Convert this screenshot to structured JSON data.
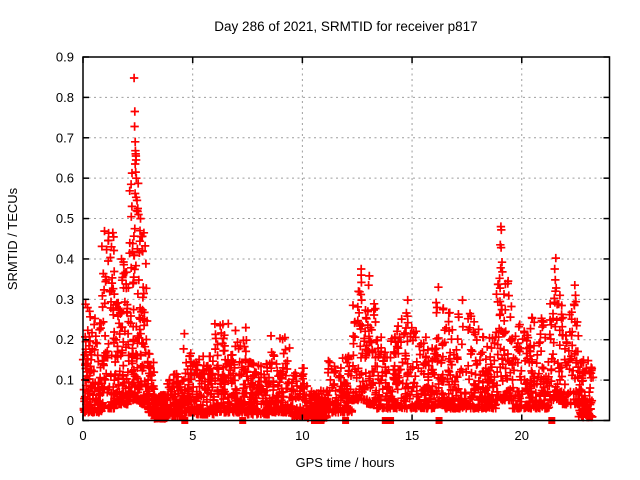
{
  "chart_data": {
    "type": "scatter",
    "title": "Day 286 of 2021, SRMTID for receiver p817",
    "xlabel": "GPS time / hours",
    "ylabel": "SRMTID / TECUs",
    "xlim": [
      0,
      24
    ],
    "ylim": [
      0,
      0.9
    ],
    "xtick_values": [
      0,
      5,
      10,
      15,
      20
    ],
    "xtick_labels": [
      "0",
      "5",
      "10",
      "15",
      "20"
    ],
    "ytick_values": [
      0,
      0.1,
      0.2,
      0.3,
      0.4,
      0.5,
      0.6,
      0.7,
      0.8,
      0.9
    ],
    "ytick_labels": [
      "0",
      "0.1",
      "0.2",
      "0.3",
      "0.4",
      "0.5",
      "0.6",
      "0.7",
      "0.8",
      "0.9"
    ],
    "grid": true,
    "legend": "none",
    "marker": "plus",
    "style": {
      "marker_color": "#ff0000",
      "axis_square_color": "#ff0000",
      "grid_color": "#9e9e9e",
      "frame_color": "#000000",
      "background": "#ffffff"
    },
    "series_name": "SRMTID",
    "axis_square_hours": [
      4.64,
      7.28,
      10.55,
      10.85,
      11.97,
      13.78,
      14.02,
      16.23,
      21.37
    ],
    "outlier_points": [
      [
        1.36,
        0.465
      ],
      [
        1.3,
        0.43
      ],
      [
        2.33,
        0.848
      ],
      [
        2.36,
        0.765
      ],
      [
        2.35,
        0.728
      ],
      [
        2.38,
        0.69
      ],
      [
        2.39,
        0.668
      ],
      [
        2.4,
        0.66
      ],
      [
        2.41,
        0.655
      ],
      [
        2.42,
        0.645
      ],
      [
        2.38,
        0.635
      ],
      [
        2.4,
        0.615
      ],
      [
        2.43,
        0.6
      ],
      [
        2.46,
        0.545
      ],
      [
        2.5,
        0.525
      ],
      [
        2.53,
        0.51
      ],
      [
        2.62,
        0.5
      ],
      [
        2.6,
        0.47
      ],
      [
        2.65,
        0.455
      ],
      [
        2.7,
        0.42
      ],
      [
        4.62,
        0.215
      ],
      [
        12.68,
        0.375
      ],
      [
        12.68,
        0.36
      ],
      [
        12.69,
        0.342
      ],
      [
        12.67,
        0.312
      ],
      [
        12.7,
        0.298
      ],
      [
        13.05,
        0.358
      ],
      [
        13.02,
        0.335
      ],
      [
        14.8,
        0.298
      ],
      [
        16.2,
        0.33
      ],
      [
        17.3,
        0.298
      ],
      [
        19.05,
        0.48
      ],
      [
        19.07,
        0.472
      ],
      [
        19.02,
        0.435
      ],
      [
        19.06,
        0.428
      ],
      [
        19.1,
        0.392
      ],
      [
        19.04,
        0.378
      ],
      [
        19.12,
        0.368
      ],
      [
        18.99,
        0.352
      ],
      [
        21.55,
        0.402
      ],
      [
        21.5,
        0.375
      ],
      [
        21.53,
        0.348
      ],
      [
        21.57,
        0.328
      ],
      [
        22.42,
        0.335
      ],
      [
        22.45,
        0.31
      ],
      [
        22.4,
        0.285
      ]
    ],
    "band_segments": [
      {
        "t0": 0.0,
        "t1": 0.35,
        "n": 60,
        "lo": 0.02,
        "hi": 0.31,
        "p": 2.2
      },
      {
        "t0": 0.35,
        "t1": 0.85,
        "n": 70,
        "lo": 0.02,
        "hi": 0.26,
        "p": 2.2
      },
      {
        "t0": 0.85,
        "t1": 1.45,
        "n": 85,
        "lo": 0.03,
        "hi": 0.47,
        "p": 2.6
      },
      {
        "t0": 1.45,
        "t1": 2.1,
        "n": 100,
        "lo": 0.04,
        "hi": 0.4,
        "p": 2.4
      },
      {
        "t0": 2.1,
        "t1": 2.55,
        "n": 80,
        "lo": 0.05,
        "hi": 0.62,
        "p": 2.2
      },
      {
        "t0": 2.55,
        "t1": 2.95,
        "n": 70,
        "lo": 0.04,
        "hi": 0.5,
        "p": 2.4
      },
      {
        "t0": 2.95,
        "t1": 3.25,
        "n": 45,
        "lo": 0.02,
        "hi": 0.17,
        "p": 2.0
      },
      {
        "t0": 3.25,
        "t1": 3.85,
        "n": 95,
        "lo": 0.005,
        "hi": 0.065,
        "p": 1.6
      },
      {
        "t0": 3.85,
        "t1": 4.55,
        "n": 80,
        "lo": 0.01,
        "hi": 0.12,
        "p": 1.8
      },
      {
        "t0": 4.55,
        "t1": 5.15,
        "n": 70,
        "lo": 0.02,
        "hi": 0.19,
        "p": 2.2
      },
      {
        "t0": 5.15,
        "t1": 6.0,
        "n": 105,
        "lo": 0.015,
        "hi": 0.16,
        "p": 2.0
      },
      {
        "t0": 6.0,
        "t1": 6.7,
        "n": 90,
        "lo": 0.02,
        "hi": 0.24,
        "p": 2.2
      },
      {
        "t0": 6.7,
        "t1": 7.45,
        "n": 90,
        "lo": 0.02,
        "hi": 0.23,
        "p": 2.2
      },
      {
        "t0": 7.45,
        "t1": 8.55,
        "n": 120,
        "lo": 0.015,
        "hi": 0.15,
        "p": 2.0
      },
      {
        "t0": 8.55,
        "t1": 9.45,
        "n": 100,
        "lo": 0.02,
        "hi": 0.215,
        "p": 2.2
      },
      {
        "t0": 9.45,
        "t1": 10.25,
        "n": 85,
        "lo": 0.01,
        "hi": 0.13,
        "p": 2.0
      },
      {
        "t0": 10.25,
        "t1": 11.15,
        "n": 90,
        "lo": 0.005,
        "hi": 0.075,
        "p": 1.6
      },
      {
        "t0": 11.15,
        "t1": 12.3,
        "n": 110,
        "lo": 0.02,
        "hi": 0.16,
        "p": 2.0
      },
      {
        "t0": 12.3,
        "t1": 12.85,
        "n": 55,
        "lo": 0.05,
        "hi": 0.34,
        "p": 2.2
      },
      {
        "t0": 12.85,
        "t1": 13.35,
        "n": 60,
        "lo": 0.04,
        "hi": 0.3,
        "p": 2.2
      },
      {
        "t0": 13.35,
        "t1": 14.25,
        "n": 90,
        "lo": 0.03,
        "hi": 0.22,
        "p": 2.2
      },
      {
        "t0": 14.25,
        "t1": 15.25,
        "n": 100,
        "lo": 0.03,
        "hi": 0.27,
        "p": 2.4
      },
      {
        "t0": 15.25,
        "t1": 16.1,
        "n": 85,
        "lo": 0.03,
        "hi": 0.22,
        "p": 2.2
      },
      {
        "t0": 16.1,
        "t1": 16.5,
        "n": 45,
        "lo": 0.04,
        "hi": 0.3,
        "p": 2.2
      },
      {
        "t0": 16.5,
        "t1": 18.15,
        "n": 160,
        "lo": 0.03,
        "hi": 0.27,
        "p": 2.4
      },
      {
        "t0": 18.15,
        "t1": 18.85,
        "n": 80,
        "lo": 0.03,
        "hi": 0.22,
        "p": 2.2
      },
      {
        "t0": 18.85,
        "t1": 19.55,
        "n": 80,
        "lo": 0.05,
        "hi": 0.37,
        "p": 2.4
      },
      {
        "t0": 19.55,
        "t1": 20.4,
        "n": 90,
        "lo": 0.03,
        "hi": 0.24,
        "p": 2.2
      },
      {
        "t0": 20.4,
        "t1": 21.25,
        "n": 85,
        "lo": 0.03,
        "hi": 0.26,
        "p": 2.2
      },
      {
        "t0": 21.25,
        "t1": 21.85,
        "n": 60,
        "lo": 0.05,
        "hi": 0.34,
        "p": 2.4
      },
      {
        "t0": 21.85,
        "t1": 22.6,
        "n": 70,
        "lo": 0.04,
        "hi": 0.3,
        "p": 2.4
      },
      {
        "t0": 22.6,
        "t1": 23.25,
        "n": 80,
        "lo": 0.008,
        "hi": 0.15,
        "p": 1.8
      }
    ]
  }
}
